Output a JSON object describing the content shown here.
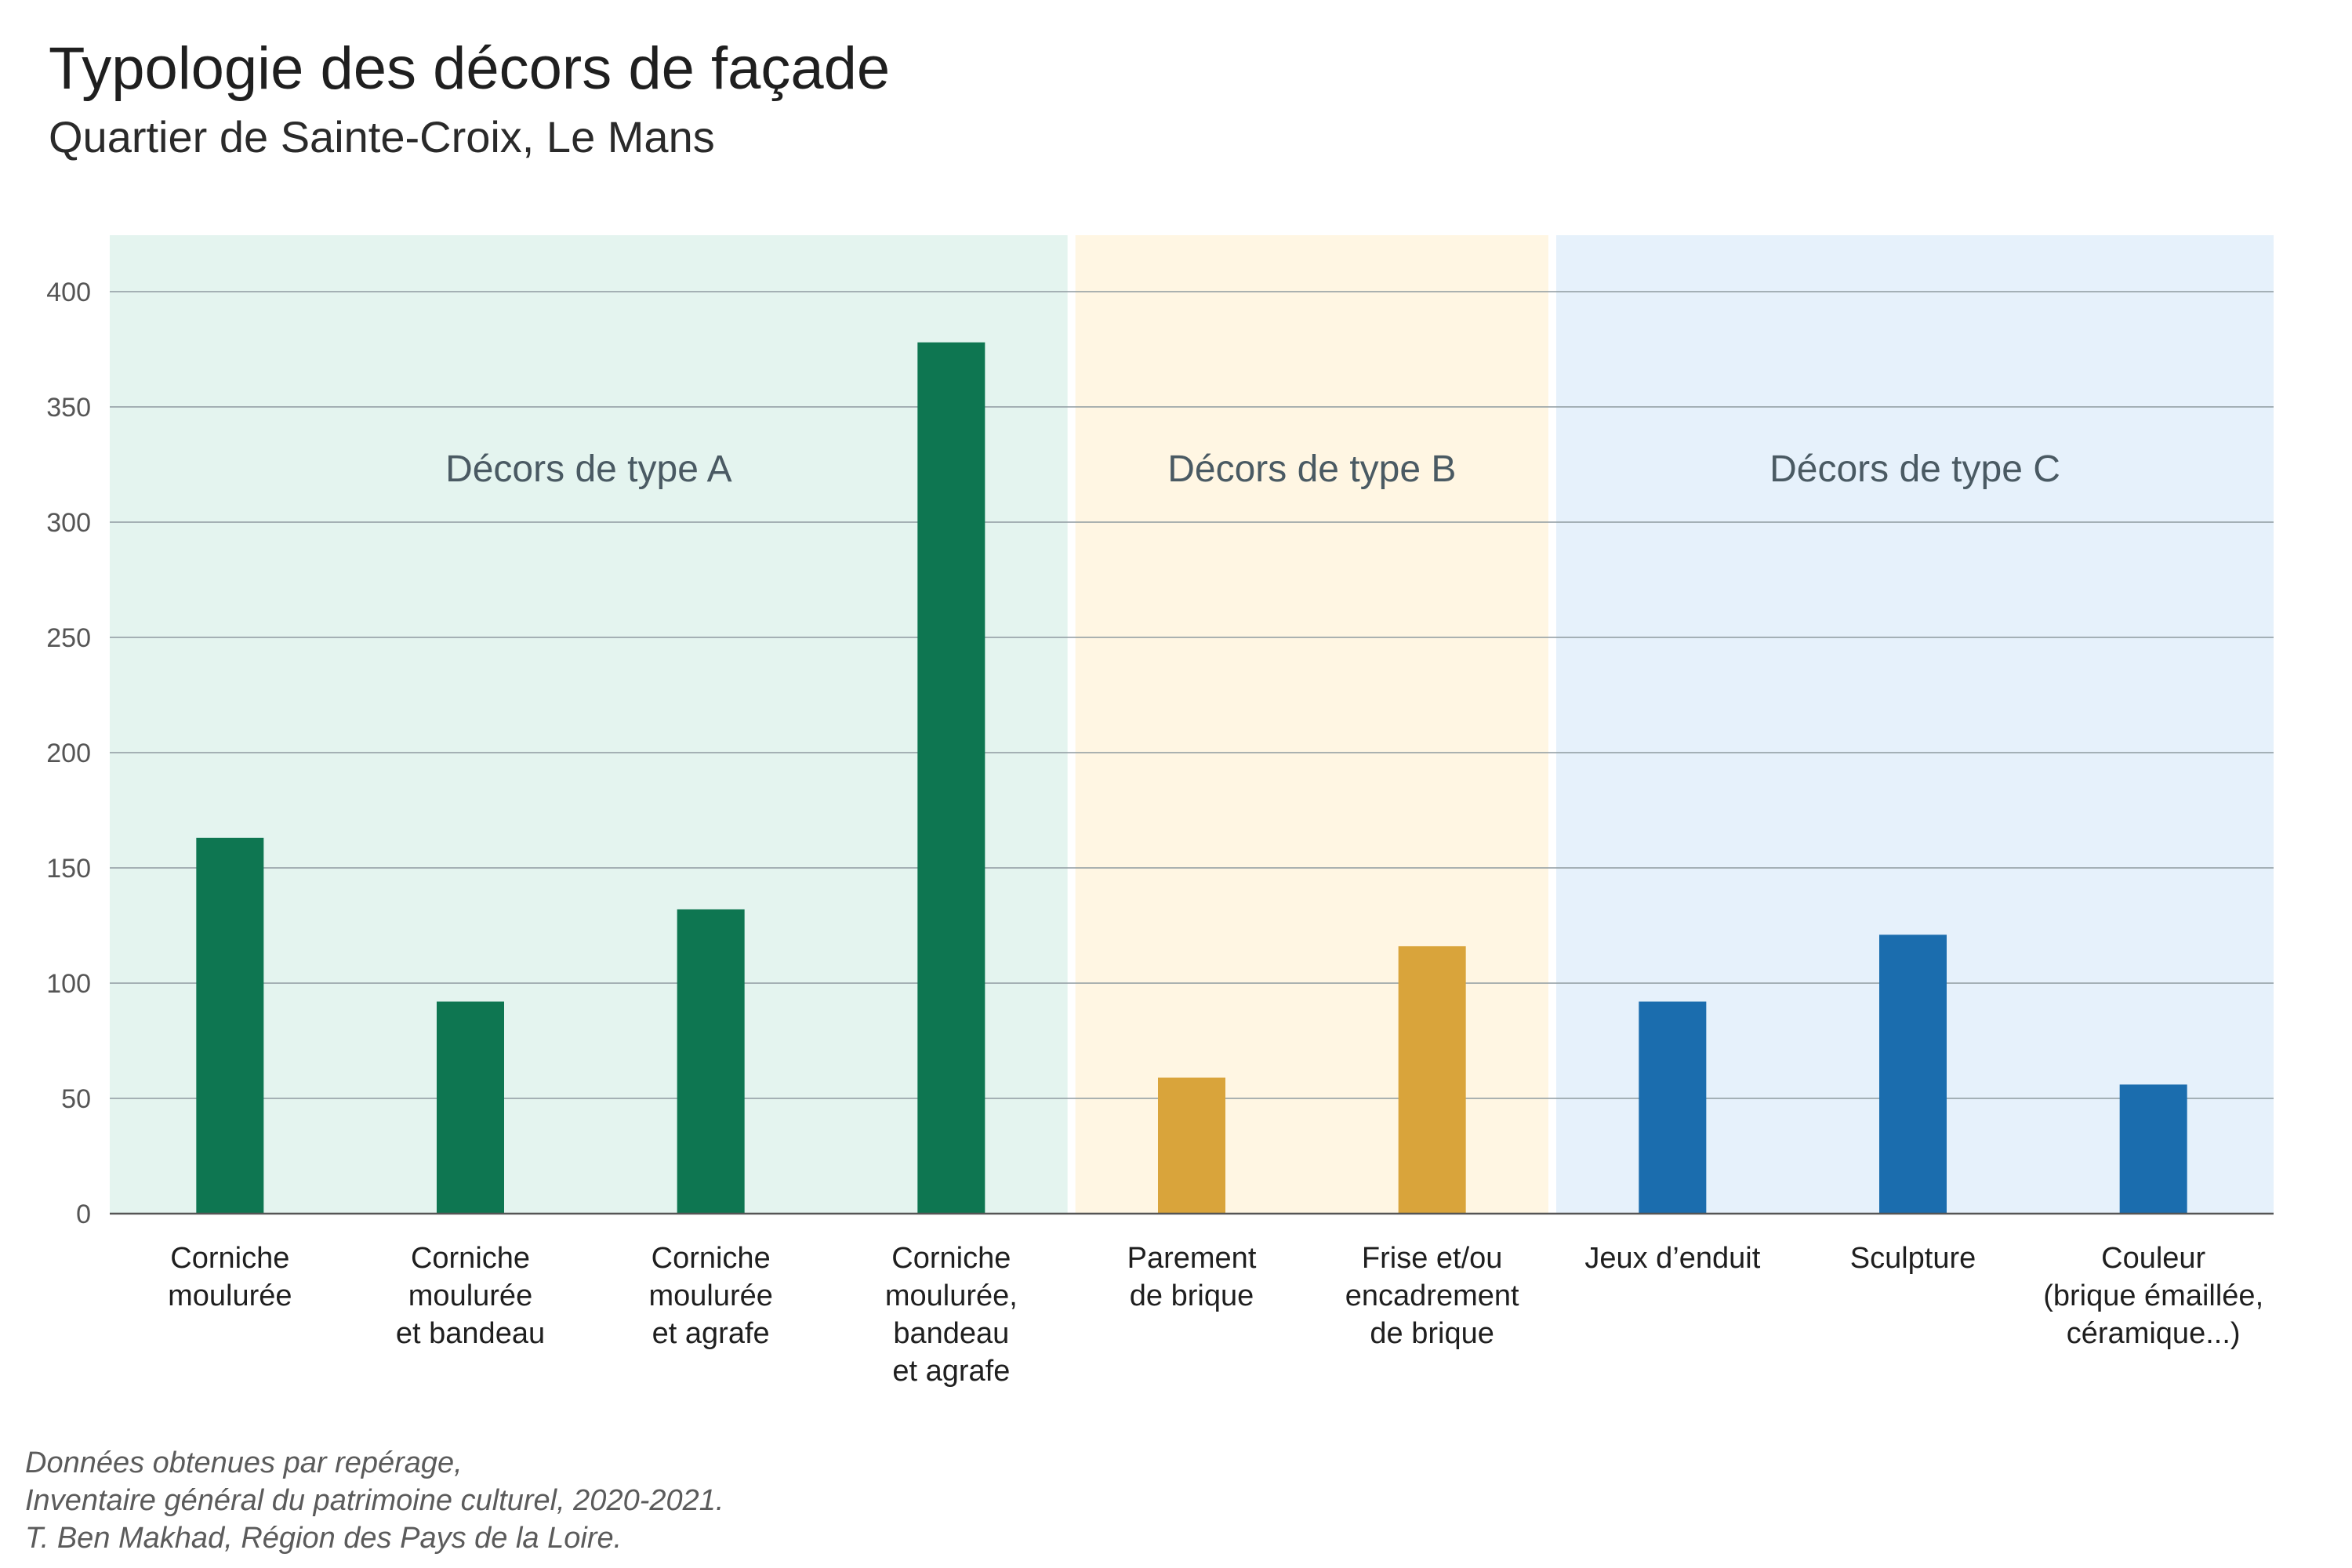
{
  "title": "Typologie des décors de façade",
  "subtitle": "Quartier de Sainte-Croix, Le Mans",
  "source": [
    "Données obtenues par repérage,",
    "Inventaire général du patrimoine culturel, 2020-2021.",
    "T. Ben Makhad, Région des Pays de la Loire."
  ],
  "chart_data": {
    "type": "bar",
    "title": "Typologie des décors de façade",
    "subtitle": "Quartier de Sainte-Croix, Le Mans",
    "xlabel": "",
    "ylabel": "",
    "ylim": [
      0,
      425
    ],
    "yticks": [
      0,
      50,
      100,
      150,
      200,
      250,
      300,
      350,
      400
    ],
    "grid": true,
    "legend": "none",
    "groups": [
      {
        "label": "Décors de type A",
        "bar_color": "#0e7651",
        "band_color": "#e4f4ef",
        "categories": [
          [
            "Corniche",
            "moulurée"
          ],
          [
            "Corniche",
            "moulurée",
            "et bandeau"
          ],
          [
            "Corniche",
            "moulurée",
            "et agrafe"
          ],
          [
            "Corniche",
            "moulurée,",
            "bandeau",
            "et agrafe"
          ]
        ],
        "values": [
          163,
          92,
          132,
          378
        ]
      },
      {
        "label": "Décors de type B",
        "bar_color": "#d9a43b",
        "band_color": "#fff6e3",
        "categories": [
          [
            "Parement",
            "de brique"
          ],
          [
            "Frise et/ou",
            "encadrement",
            "de brique"
          ]
        ],
        "values": [
          59,
          116
        ]
      },
      {
        "label": "Décors de type C",
        "bar_color": "#1b6dae",
        "band_color": "#e6f1fb",
        "categories": [
          [
            "Jeux d’enduit"
          ],
          [
            "Sculpture"
          ],
          [
            "Couleur",
            "(brique émaillée,",
            "céramique...)"
          ]
        ],
        "values": [
          92,
          121,
          56
        ]
      }
    ]
  }
}
